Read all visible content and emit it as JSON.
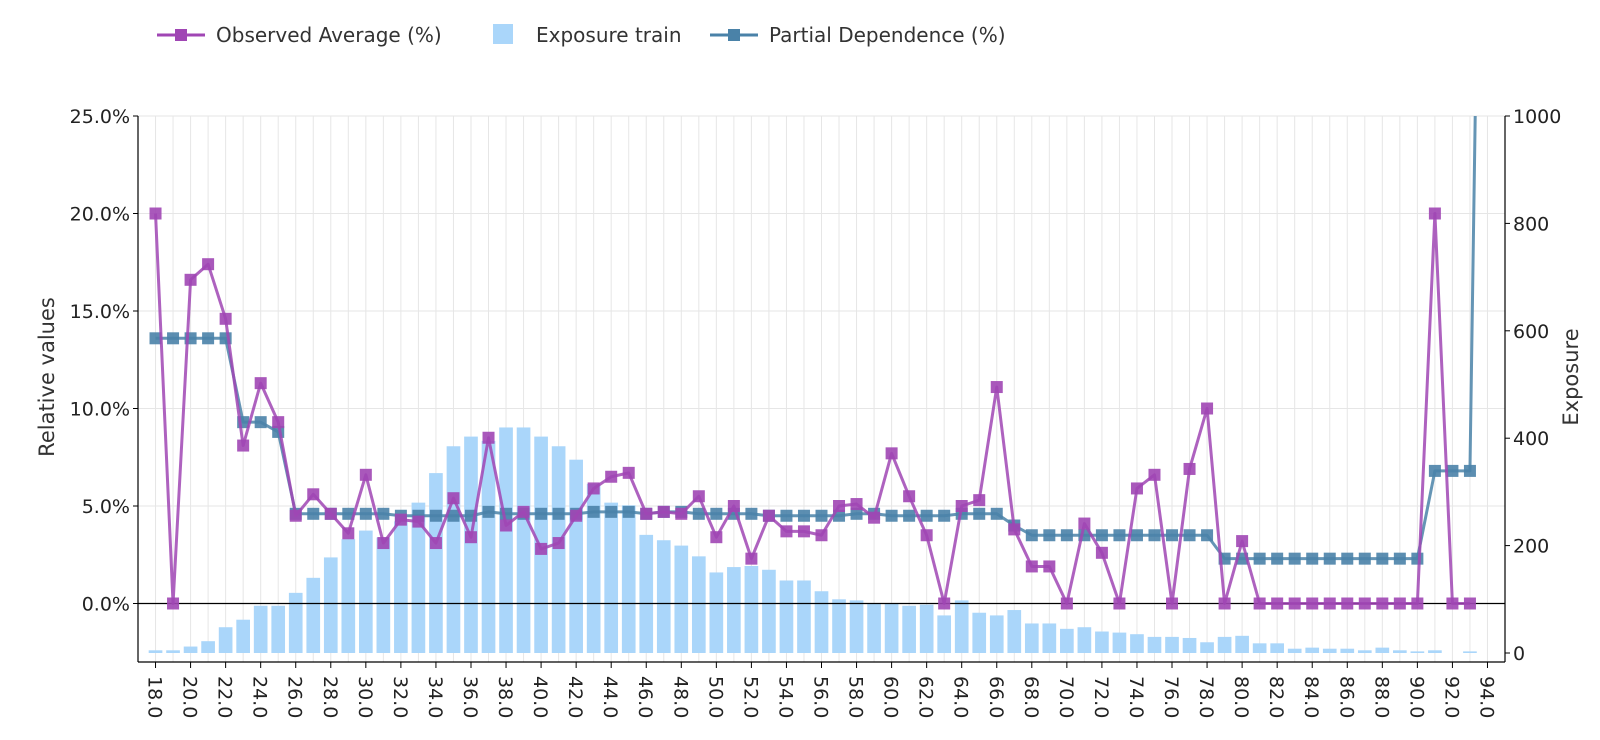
{
  "chart_data": {
    "type": "bar+line",
    "x_ticks": [
      "18.0",
      "20.0",
      "22.0",
      "24.0",
      "26.0",
      "28.0",
      "30.0",
      "32.0",
      "34.0",
      "36.0",
      "38.0",
      "40.0",
      "42.0",
      "44.0",
      "46.0",
      "48.0",
      "50.0",
      "52.0",
      "54.0",
      "56.0",
      "58.0",
      "60.0",
      "62.0",
      "64.0",
      "66.0",
      "68.0",
      "70.0",
      "72.0",
      "74.0",
      "76.0",
      "78.0",
      "80.0",
      "82.0",
      "84.0",
      "86.0",
      "88.0",
      "90.0",
      "92.0",
      "94.0"
    ],
    "y_left": {
      "title": "Relative values",
      "range": [
        -3,
        25
      ],
      "ticks": [
        0,
        5,
        10,
        15,
        20,
        25
      ],
      "tick_labels": [
        "0.0%",
        "5.0%",
        "10.0%",
        "15.0%",
        "20.0%",
        "25.0%"
      ]
    },
    "y_right": {
      "title": "Exposure",
      "range": [
        0,
        1000
      ],
      "ticks": [
        0,
        200,
        400,
        600,
        800,
        1000
      ],
      "tick_labels": [
        "0",
        "200",
        "400",
        "600",
        "800",
        "1000"
      ]
    },
    "x_range": [
      17,
      95
    ],
    "grid": true,
    "legend_position": "top-left",
    "series": [
      {
        "name": "Observed Average (%)",
        "kind": "line-markers",
        "color": "#a046b4",
        "x": [
          18,
          19,
          20,
          21,
          22,
          23,
          24,
          25,
          26,
          27,
          28,
          29,
          30,
          31,
          32,
          33,
          34,
          35,
          36,
          37,
          38,
          39,
          40,
          41,
          42,
          43,
          44,
          45,
          46,
          47,
          48,
          49,
          50,
          51,
          52,
          53,
          54,
          55,
          56,
          57,
          58,
          59,
          60,
          61,
          62,
          63,
          64,
          65,
          66,
          67,
          68,
          69,
          70,
          71,
          72,
          73,
          74,
          75,
          76,
          77,
          78,
          79,
          80,
          81,
          82,
          83,
          84,
          85,
          86,
          87,
          88,
          89,
          90,
          91,
          92,
          93
        ],
        "values": [
          20.0,
          0.0,
          16.6,
          17.4,
          14.6,
          8.1,
          11.3,
          9.3,
          4.5,
          5.6,
          4.6,
          3.6,
          6.6,
          3.1,
          4.3,
          4.2,
          3.1,
          5.4,
          3.4,
          8.5,
          4.0,
          4.7,
          2.8,
          3.1,
          4.5,
          5.9,
          6.5,
          6.7,
          4.6,
          4.7,
          4.6,
          5.5,
          3.4,
          5.0,
          2.3,
          4.5,
          3.7,
          3.7,
          3.5,
          5.0,
          5.1,
          4.4,
          7.7,
          5.5,
          3.5,
          0.0,
          5.0,
          5.3,
          11.1,
          3.8,
          1.9,
          1.9,
          0.0,
          4.1,
          2.6,
          0.0,
          5.9,
          6.6,
          0.0,
          6.9,
          10.0,
          0.0,
          3.2,
          0.0,
          0.0,
          0.0,
          0.0,
          0.0,
          0.0,
          0.0,
          0.0,
          0.0,
          0.0,
          20.0,
          0.0,
          0.0
        ]
      },
      {
        "name": "Exposure train",
        "kind": "bar",
        "axis": "right",
        "color": "#aad6fa",
        "x": [
          18,
          19,
          20,
          21,
          22,
          23,
          24,
          25,
          26,
          27,
          28,
          29,
          30,
          31,
          32,
          33,
          34,
          35,
          36,
          37,
          38,
          39,
          40,
          41,
          42,
          43,
          44,
          45,
          46,
          47,
          48,
          49,
          50,
          51,
          52,
          53,
          54,
          55,
          56,
          57,
          58,
          59,
          60,
          61,
          62,
          63,
          64,
          65,
          66,
          67,
          68,
          69,
          70,
          71,
          72,
          73,
          74,
          75,
          76,
          77,
          78,
          79,
          80,
          81,
          82,
          83,
          84,
          85,
          86,
          87,
          88,
          89,
          90,
          91,
          92,
          93,
          94
        ],
        "values": [
          5,
          5,
          12,
          22,
          48,
          62,
          88,
          88,
          112,
          140,
          178,
          212,
          228,
          215,
          245,
          280,
          335,
          385,
          403,
          395,
          420,
          420,
          403,
          385,
          360,
          315,
          280,
          275,
          220,
          210,
          200,
          180,
          150,
          160,
          162,
          155,
          135,
          135,
          115,
          100,
          98,
          92,
          92,
          88,
          90,
          70,
          98,
          75,
          70,
          80,
          55,
          55,
          45,
          48,
          40,
          38,
          35,
          30,
          30,
          28,
          20,
          30,
          32,
          18,
          18,
          8,
          10,
          8,
          8,
          5,
          10,
          5,
          3,
          5,
          0,
          3,
          0
        ],
        "values_overlay_pct": []
      },
      {
        "name": "Partial Dependence (%)",
        "kind": "line-markers",
        "color": "#4a82a8",
        "x": [
          18,
          19,
          20,
          21,
          22,
          23,
          24,
          25,
          26,
          27,
          28,
          29,
          30,
          31,
          32,
          33,
          34,
          35,
          36,
          37,
          38,
          39,
          40,
          41,
          42,
          43,
          44,
          45,
          46,
          47,
          48,
          49,
          50,
          51,
          52,
          53,
          54,
          55,
          56,
          57,
          58,
          59,
          60,
          61,
          62,
          63,
          64,
          65,
          66,
          67,
          68,
          69,
          70,
          71,
          72,
          73,
          74,
          75,
          76,
          77,
          78,
          79,
          80,
          81,
          82,
          83,
          84,
          85,
          86,
          87,
          88,
          89,
          90,
          91,
          92,
          93,
          93.3
        ],
        "values": [
          13.6,
          13.6,
          13.6,
          13.6,
          13.6,
          9.3,
          9.3,
          8.8,
          4.6,
          4.6,
          4.6,
          4.6,
          4.6,
          4.6,
          4.5,
          4.5,
          4.5,
          4.5,
          4.5,
          4.7,
          4.6,
          4.6,
          4.6,
          4.6,
          4.6,
          4.7,
          4.7,
          4.7,
          4.6,
          4.7,
          4.7,
          4.6,
          4.6,
          4.6,
          4.6,
          4.5,
          4.5,
          4.5,
          4.5,
          4.5,
          4.6,
          4.6,
          4.5,
          4.5,
          4.5,
          4.5,
          4.6,
          4.6,
          4.6,
          4.0,
          3.5,
          3.5,
          3.5,
          3.5,
          3.5,
          3.5,
          3.5,
          3.5,
          3.5,
          3.5,
          3.5,
          2.3,
          2.3,
          2.3,
          2.3,
          2.3,
          2.3,
          2.3,
          2.3,
          2.3,
          2.3,
          2.3,
          2.3,
          6.8,
          6.8,
          6.8,
          25.0
        ]
      }
    ],
    "zero_line": true
  },
  "colors": {
    "observed": "#a046b4",
    "exposure": "#aad6fa",
    "partial": "#4a82a8",
    "grid": "#e6e6e6",
    "axis": "#000000"
  },
  "legend": {
    "observed_label": "Observed Average (%)",
    "exposure_label": "Exposure train",
    "partial_label": "Partial Dependence (%)"
  }
}
